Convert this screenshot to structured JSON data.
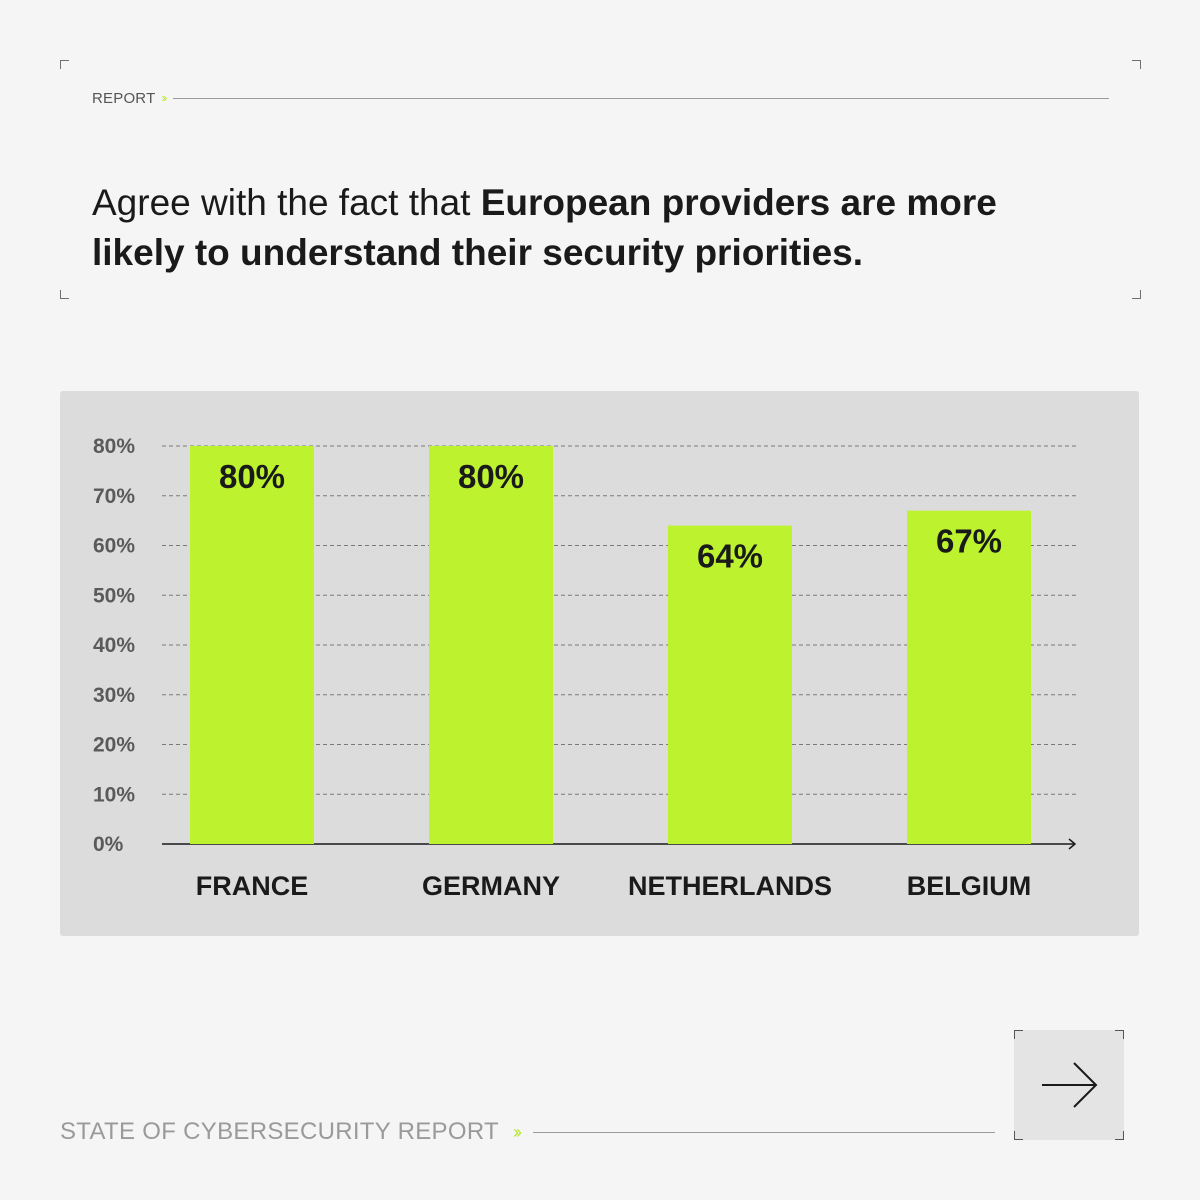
{
  "header": {
    "label": "REPORT"
  },
  "headline": {
    "regular": "Agree with the fact that ",
    "bold": "European providers are more likely to understand their security priorities."
  },
  "footer": {
    "label": "STATE OF CYBERSECURITY REPORT"
  },
  "next_button": {
    "icon": "arrow-right-icon"
  },
  "colors": {
    "accent": "#bdf22e",
    "background": "#f5f5f5",
    "panel": "#dcdcdc",
    "text": "#1a1a1a"
  },
  "chart_data": {
    "type": "bar",
    "categories": [
      "FRANCE",
      "GERMANY",
      "NETHERLANDS",
      "BELGIUM"
    ],
    "values": [
      80,
      80,
      64,
      67
    ],
    "data_labels": [
      "80%",
      "80%",
      "64%",
      "67%"
    ],
    "ylim": [
      0,
      80
    ],
    "yticks": [
      0,
      10,
      20,
      30,
      40,
      50,
      60,
      70,
      80
    ],
    "ytick_labels": [
      "0%",
      "10%",
      "20%",
      "30%",
      "40%",
      "50%",
      "60%",
      "70%",
      "80%"
    ],
    "grid": true,
    "bar_color": "#bdf22e"
  }
}
